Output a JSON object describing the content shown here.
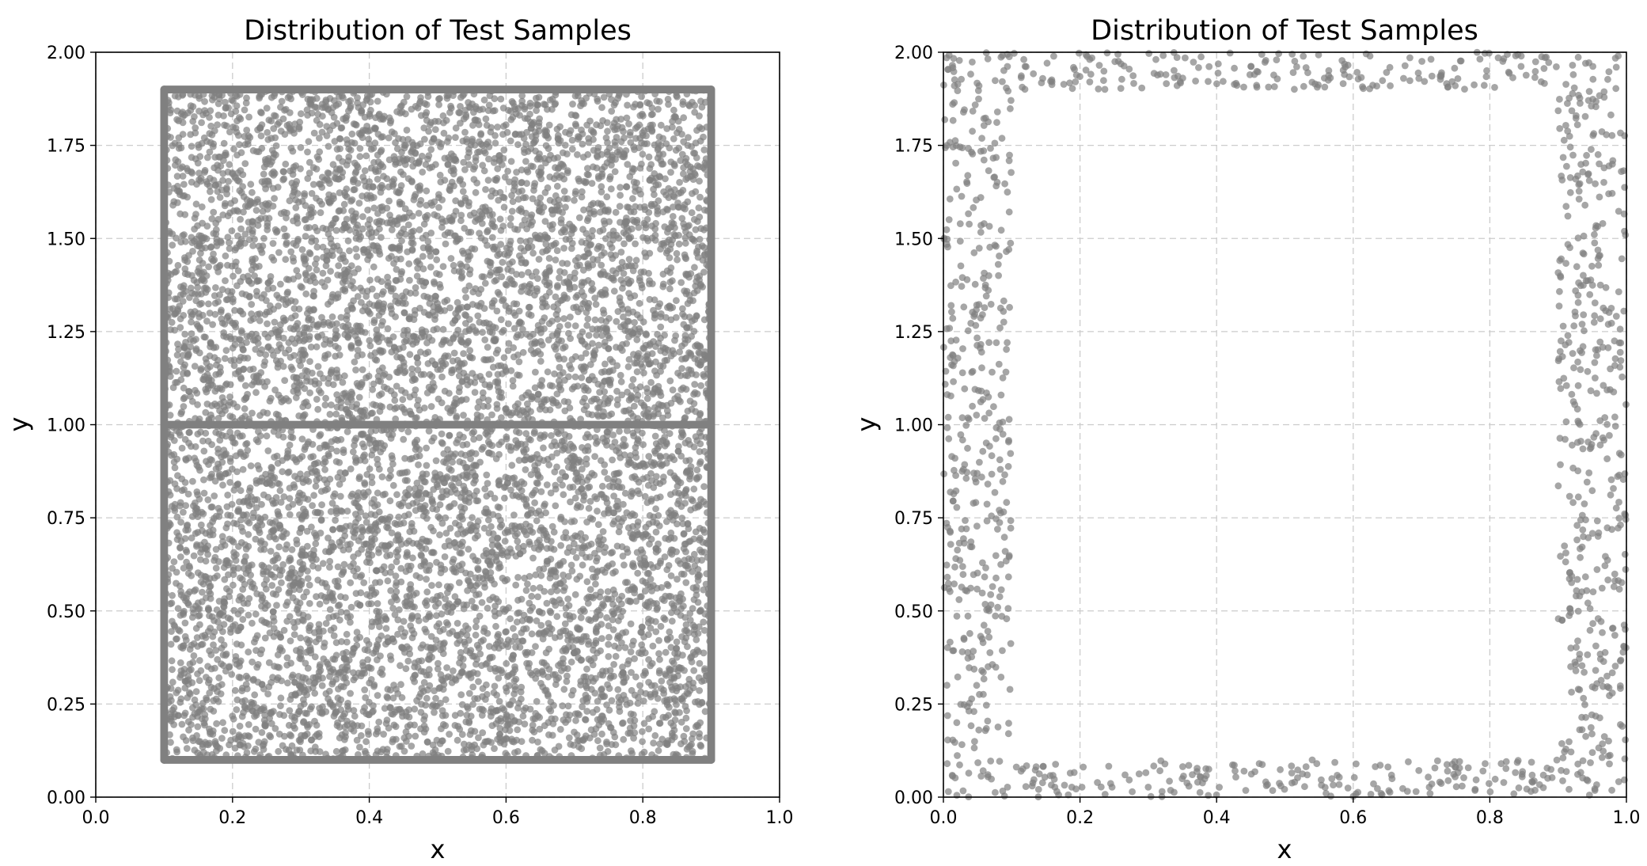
{
  "colors": {
    "points": "#808080",
    "grid": "#cccccc",
    "axes": "#000000",
    "background": "#ffffff"
  },
  "chart_data": [
    {
      "type": "scatter",
      "title": "Distribution of Test Samples",
      "xlabel": "x",
      "ylabel": "y",
      "xlim": [
        0.0,
        1.0
      ],
      "ylim": [
        0.0,
        2.0
      ],
      "x_ticks": [
        "0.0",
        "0.2",
        "0.4",
        "0.6",
        "0.8",
        "1.0"
      ],
      "y_ticks": [
        "0.00",
        "0.25",
        "0.50",
        "0.75",
        "1.00",
        "1.25",
        "1.50",
        "1.75",
        "2.00"
      ],
      "grid": true,
      "point_color": "#808080",
      "distribution": {
        "interior": {
          "x_range": [
            0.1,
            0.9
          ],
          "y_range": [
            0.1,
            1.9
          ],
          "approx_count": 8000
        },
        "boundary_lines": [
          {
            "orientation": "vertical",
            "x": 0.1,
            "y_range": [
              0.1,
              1.9
            ]
          },
          {
            "orientation": "vertical",
            "x": 0.9,
            "y_range": [
              0.1,
              1.9
            ]
          },
          {
            "orientation": "horizontal",
            "y": 0.1,
            "x_range": [
              0.1,
              0.9
            ]
          },
          {
            "orientation": "horizontal",
            "y": 1.9,
            "x_range": [
              0.1,
              0.9
            ]
          },
          {
            "orientation": "horizontal",
            "y": 1.0,
            "x_range": [
              0.1,
              0.9
            ]
          }
        ]
      }
    },
    {
      "type": "scatter",
      "title": "Distribution of Test Samples",
      "xlabel": "x",
      "ylabel": "y",
      "xlim": [
        0.0,
        1.0
      ],
      "ylim": [
        0.0,
        2.0
      ],
      "x_ticks": [
        "0.0",
        "0.2",
        "0.4",
        "0.6",
        "0.8",
        "1.0"
      ],
      "y_ticks": [
        "0.00",
        "0.25",
        "0.50",
        "0.75",
        "1.00",
        "1.25",
        "1.50",
        "1.75",
        "2.00"
      ],
      "grid": true,
      "point_color": "#808080",
      "distribution": {
        "frame_bands": [
          {
            "side": "left",
            "x_range": [
              0.0,
              0.1
            ],
            "y_range": [
              0.0,
              2.0
            ],
            "approx_count": 420
          },
          {
            "side": "right",
            "x_range": [
              0.9,
              1.0
            ],
            "y_range": [
              0.0,
              2.0
            ],
            "approx_count": 420
          },
          {
            "side": "bottom",
            "x_range": [
              0.1,
              0.9
            ],
            "y_range": [
              0.0,
              0.1
            ],
            "approx_count": 200
          },
          {
            "side": "top",
            "x_range": [
              0.1,
              0.9
            ],
            "y_range": [
              1.9,
              2.0
            ],
            "approx_count": 200
          }
        ]
      }
    }
  ]
}
